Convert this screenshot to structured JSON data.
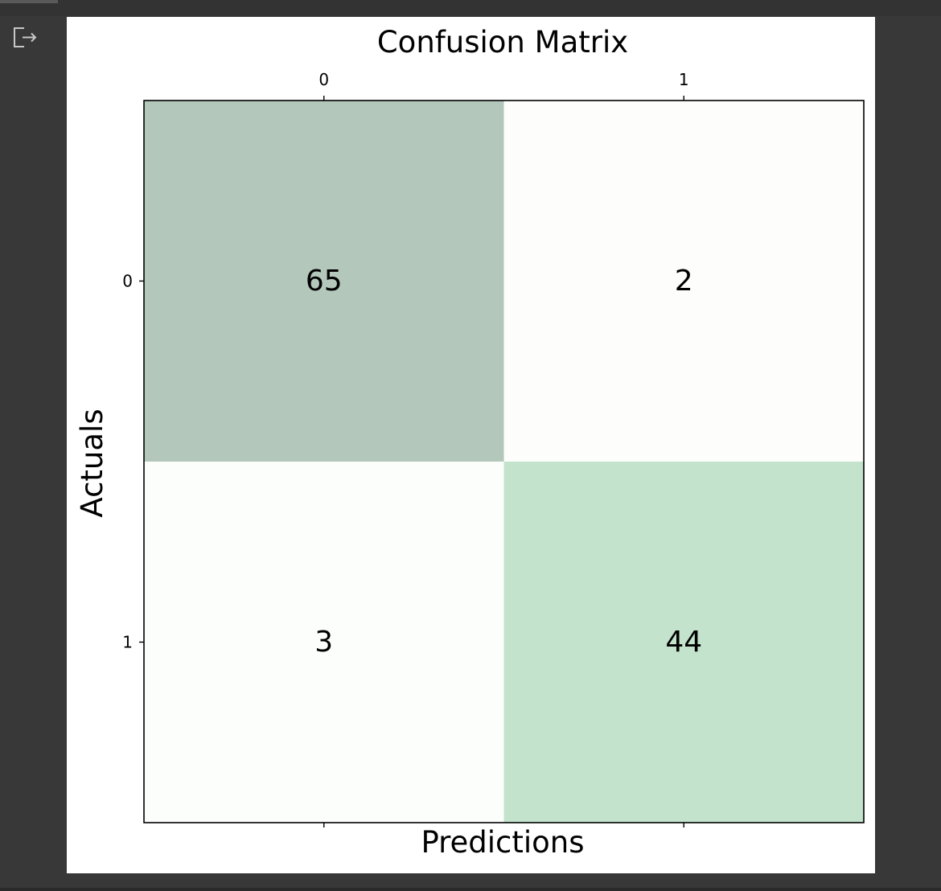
{
  "output_area": {
    "icon": "output-redirect-icon"
  },
  "chart_data": {
    "type": "heatmap",
    "title": "Confusion Matrix",
    "xlabel": "Predictions",
    "ylabel": "Actuals",
    "x_tick_labels": [
      "0",
      "1"
    ],
    "y_tick_labels": [
      "0",
      "1"
    ],
    "values": [
      [
        65,
        2
      ],
      [
        3,
        44
      ]
    ],
    "cell_labels": [
      [
        "65",
        "2"
      ],
      [
        "3",
        "44"
      ]
    ],
    "colormap": "Greens",
    "alpha": 0.3,
    "x_ticks_position": "top-and-bottom",
    "grid": false
  }
}
